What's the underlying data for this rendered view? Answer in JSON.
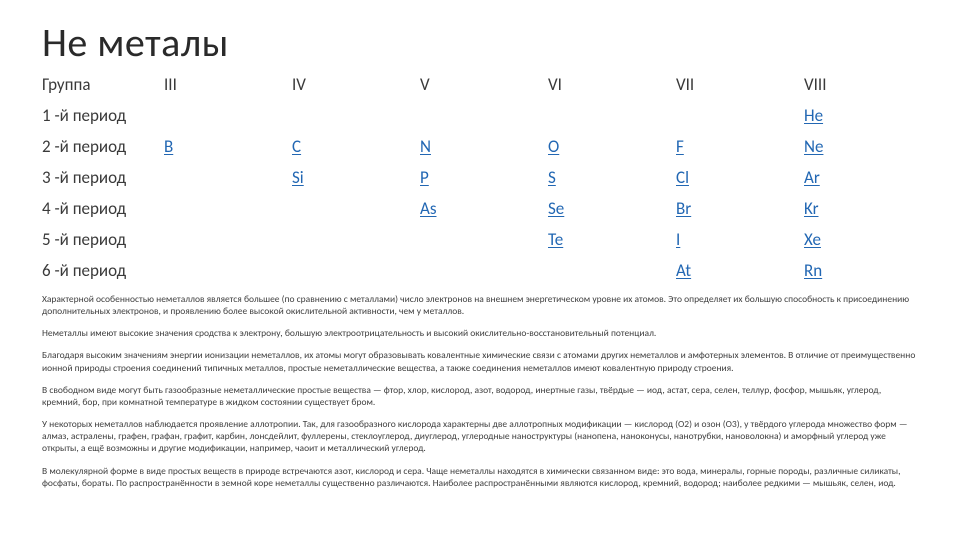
{
  "title": "Не металы",
  "table": {
    "group_header": "Группа",
    "groups": [
      "III",
      "IV",
      "V",
      "VI",
      "VII",
      "VIII"
    ],
    "periods": [
      "1 -й период",
      "2 -й период",
      "3 -й период",
      "4 -й период",
      "5 -й период",
      "6 -й период"
    ],
    "cells": [
      [
        "",
        "",
        "",
        "",
        "",
        "He"
      ],
      [
        "B",
        "C",
        "N",
        "O",
        "F",
        "Ne"
      ],
      [
        "",
        "Si",
        "P",
        "S",
        "Cl",
        "Ar"
      ],
      [
        "",
        "",
        "As",
        "Se",
        "Br",
        "Kr"
      ],
      [
        "",
        "",
        "",
        "Te",
        "I",
        "Xe"
      ],
      [
        "",
        "",
        "",
        "",
        "At",
        "Rn"
      ]
    ],
    "header_color": "#3a3a3a",
    "element_color": "#2267b3",
    "font_size": 17
  },
  "paragraphs": [
    "Характерной особенностью неметаллов является большее (по сравнению с металлами) число электронов на внешнем энергетическом уровне их атомов. Это определяет их большую способность к присоединению дополнительных электронов, и проявлению более высокой окислительной активности, чем у металлов.",
    "Неметаллы имеют высокие значения сродства к электрону, большую электроотрицательность и высокий окислительно-восстановительный потенциал.",
    "Благодаря высоким значениям энергии ионизации неметаллов, их атомы могут образовывать ковалентные химические связи с атомами других неметаллов и амфотерных элементов. В отличие от преимущественно ионной природы строения соединений типичных металлов, простые неметаллические вещества, а также соединения неметаллов имеют ковалентную природу строения.",
    "В свободном виде могут быть газообразные неметаллические простые вещества — фтор, хлор, кислород, азот, водород, инертные газы, твёрдые — иод, астат, сера, селен, теллур, фосфор, мышьяк, углерод, кремний, бор, при комнатной температуре в жидком состоянии существует бром.",
    "У некоторых неметаллов наблюдается проявление аллотропии. Так, для газообразного кислорода характерны две аллотропных модификации — кислород (O2) и озон (O3), у твёрдого углерода множество форм — алмаз, астралены, графен, графан, графит, карбин, лонсдейлит, фуллерены, стеклоуглерод, диуглерод, углеродные наноструктуры (нанопена, наноконусы, нанотрубки, нановолокна) и аморфный углерод уже открыты, а ещё возможны и другие модификации, например, чаоит и металлический углерод.",
    "В молекулярной форме в виде простых веществ в природе встречаются азот, кислород и сера. Чаще неметаллы находятся в химически связанном виде: это вода, минералы, горные породы, различные силикаты, фосфаты, бораты. По распространённости в земной коре неметаллы существенно различаются. Наиболее распространёнными являются кислород, кремний, водород; наиболее редкими — мышьяк, селен, иод."
  ],
  "paragraph_fontsize": 9.5,
  "background_color": "#ffffff"
}
